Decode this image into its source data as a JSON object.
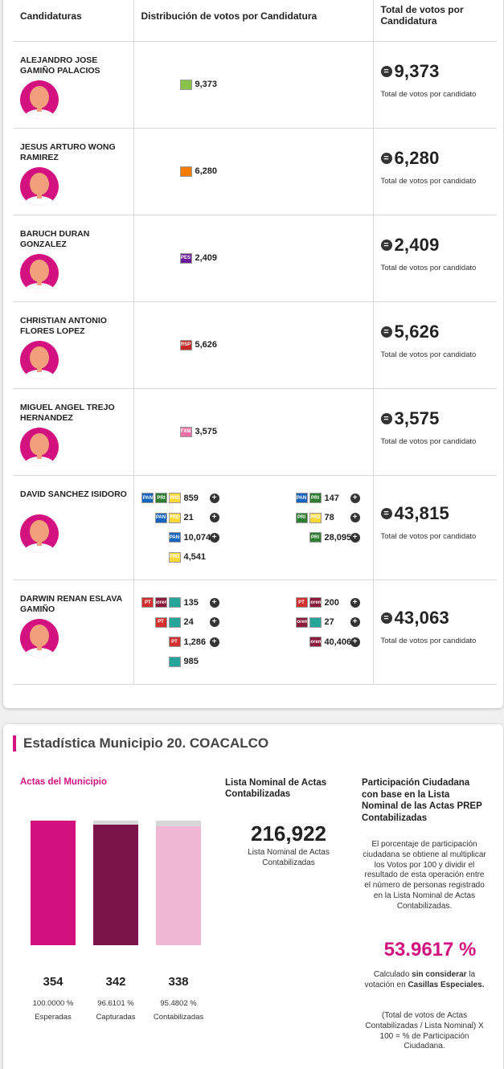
{
  "table": {
    "headers": {
      "candidaturas": "Candidaturas",
      "distribucion": "Distribución de votos por Candidatura",
      "total": "Total de votos por Candidatura"
    },
    "total_label": "Total de votos por candidato",
    "candidates": [
      {
        "name": "ALEJANDRO JOSE GAMIÑO PALACIOS",
        "total": "9,373",
        "rows": [
          {
            "logos": [
              {
                "icon": "party-pvem-logo",
                "text": "",
                "color": "#8bc34a"
              }
            ],
            "votes": "9,373",
            "expandable": false
          }
        ]
      },
      {
        "name": "JESUS ARTURO WONG RAMIREZ",
        "total": "6,280",
        "rows": [
          {
            "logos": [
              {
                "icon": "party-mc-logo",
                "text": "",
                "color": "#f57c00"
              }
            ],
            "votes": "6,280",
            "expandable": false
          }
        ]
      },
      {
        "name": "BARUCH DURAN GONZALEZ",
        "total": "2,409",
        "rows": [
          {
            "logos": [
              {
                "icon": "party-pes-logo",
                "text": "PES",
                "color": "#6a1b9a"
              }
            ],
            "votes": "2,409",
            "expandable": false
          }
        ]
      },
      {
        "name": "CHRISTIAN ANTONIO FLORES LOPEZ",
        "total": "5,626",
        "rows": [
          {
            "logos": [
              {
                "icon": "party-rsp-logo",
                "text": "RSP",
                "color": "#c62828"
              }
            ],
            "votes": "5,626",
            "expandable": false
          }
        ]
      },
      {
        "name": "MIGUEL ANGEL TREJO HERNANDEZ",
        "total": "3,575",
        "rows": [
          {
            "logos": [
              {
                "icon": "party-fxm-logo",
                "text": "FXM",
                "color": "#ec6fa6"
              }
            ],
            "votes": "3,575",
            "expandable": false
          }
        ]
      },
      {
        "name": "DAVID SANCHEZ ISIDORO",
        "total": "43,815",
        "rows": [
          [
            {
              "logos": [
                {
                  "icon": "party-pan-logo",
                  "text": "PAN",
                  "color": "#1565c0"
                },
                {
                  "icon": "party-pri-logo",
                  "text": "PRI",
                  "color": "#2e7d32"
                },
                {
                  "icon": "party-prd-logo",
                  "text": "PRD",
                  "color": "#fdd835"
                }
              ],
              "votes": "859",
              "expandable": true
            },
            {
              "logos": [
                {
                  "icon": "party-pan-logo",
                  "text": "PAN",
                  "color": "#1565c0"
                },
                {
                  "icon": "party-pri-logo",
                  "text": "PRI",
                  "color": "#2e7d32"
                }
              ],
              "votes": "147",
              "expandable": true
            }
          ],
          [
            {
              "logos": [
                {
                  "icon": "party-pan-logo",
                  "text": "PAN",
                  "color": "#1565c0"
                },
                {
                  "icon": "party-prd-logo",
                  "text": "PRD",
                  "color": "#fdd835"
                }
              ],
              "votes": "21",
              "expandable": true
            },
            {
              "logos": [
                {
                  "icon": "party-pri-logo",
                  "text": "PRI",
                  "color": "#2e7d32"
                },
                {
                  "icon": "party-prd-logo",
                  "text": "PRD",
                  "color": "#fdd835"
                }
              ],
              "votes": "78",
              "expandable": true
            }
          ],
          [
            {
              "logos": [
                {
                  "icon": "party-pan-logo",
                  "text": "PAN",
                  "color": "#1565c0"
                }
              ],
              "votes": "10,074",
              "expandable": true
            },
            {
              "logos": [
                {
                  "icon": "party-pri-logo",
                  "text": "PRI",
                  "color": "#2e7d32"
                }
              ],
              "votes": "28,095",
              "expandable": true
            }
          ],
          [
            {
              "logos": [
                {
                  "icon": "party-prd-logo",
                  "text": "PRD",
                  "color": "#fdd835"
                }
              ],
              "votes": "4,541",
              "expandable": false
            }
          ]
        ]
      },
      {
        "name": "DARWIN RENAN ESLAVA GAMIÑO",
        "total": "43,063",
        "rows": [
          [
            {
              "logos": [
                {
                  "icon": "party-pt-logo",
                  "text": "PT",
                  "color": "#d32f2f"
                },
                {
                  "icon": "party-morena-logo",
                  "text": "morena",
                  "color": "#8d1b3d"
                },
                {
                  "icon": "party-na-logo",
                  "text": "",
                  "color": "#26a69a"
                }
              ],
              "votes": "135",
              "expandable": true
            },
            {
              "logos": [
                {
                  "icon": "party-pt-logo",
                  "text": "PT",
                  "color": "#d32f2f"
                },
                {
                  "icon": "party-morena-logo",
                  "text": "morena",
                  "color": "#8d1b3d"
                }
              ],
              "votes": "200",
              "expandable": true
            }
          ],
          [
            {
              "logos": [
                {
                  "icon": "party-pt-logo",
                  "text": "PT",
                  "color": "#d32f2f"
                },
                {
                  "icon": "party-na-logo",
                  "text": "",
                  "color": "#26a69a"
                }
              ],
              "votes": "24",
              "expandable": true
            },
            {
              "logos": [
                {
                  "icon": "party-morena-logo",
                  "text": "morena",
                  "color": "#8d1b3d"
                },
                {
                  "icon": "party-na-logo",
                  "text": "",
                  "color": "#26a69a"
                }
              ],
              "votes": "27",
              "expandable": true
            }
          ],
          [
            {
              "logos": [
                {
                  "icon": "party-pt-logo",
                  "text": "PT",
                  "color": "#d32f2f"
                }
              ],
              "votes": "1,286",
              "expandable": true
            },
            {
              "logos": [
                {
                  "icon": "party-morena-logo",
                  "text": "morena",
                  "color": "#8d1b3d"
                }
              ],
              "votes": "40,406",
              "expandable": true
            }
          ],
          [
            {
              "logos": [
                {
                  "icon": "party-na-logo",
                  "text": "",
                  "color": "#26a69a"
                }
              ],
              "votes": "985",
              "expandable": false
            }
          ]
        ]
      }
    ]
  },
  "stats": {
    "title": "Estadística Municipio 20. COACALCO",
    "actas": {
      "title": "Actas del Municipio",
      "bars": [
        {
          "value": "354",
          "pct": "100.0000 %",
          "label": "Esperadas",
          "fraction": 1.0,
          "color": "#d4127f"
        },
        {
          "value": "342",
          "pct": "96.6101 %",
          "label": "Capturadas",
          "fraction": 0.966101,
          "color": "#7b1449"
        },
        {
          "value": "338",
          "pct": "95.4802 %",
          "label": "Contabilizadas",
          "fraction": 0.954802,
          "color": "#f1b6d4"
        }
      ]
    },
    "lista": {
      "title": "Lista Nominal de Actas Contabilizadas",
      "value": "216,922",
      "label": "Lista Nominal de Actas Contabilizadas"
    },
    "participacion": {
      "title": "Participación Ciudadana con base en la Lista Nominal de las Actas PREP Contabilizadas",
      "description": "El porcentaje de participación ciudadana se obtiene al multiplicar los Votos por 100 y dividir el resultado de esta operación entre el número de personas registrado en la Lista Nominal de Actas Contabilizadas.",
      "value": "53.9617 %",
      "note_prefix": "Calculado ",
      "note_bold1": "sin considerar",
      "note_mid": " la votación en ",
      "note_bold2": "Casillas Especiales.",
      "formula": "(Total de votos de Actas Contabilizadas / Lista Nominal) X 100 = % de Participación Ciudadana."
    }
  }
}
